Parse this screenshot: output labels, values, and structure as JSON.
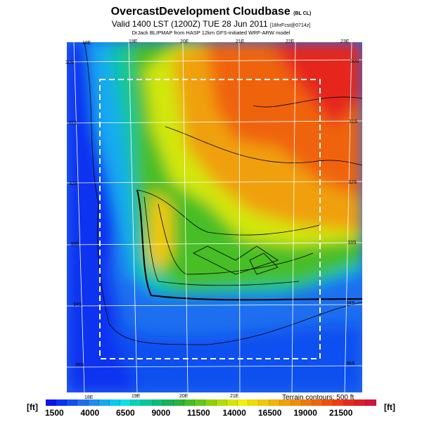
{
  "title": {
    "main": "OvercastDevelopment Cloudbase",
    "main_suffix": "(BL CL)",
    "line2": "Valid 1400 LST (1200Z) TUE 28 Jun 2011",
    "line2_suffix": "[18hrFcst@0714z]",
    "line3": "DrJack BLIPMAP from HASP 12km GFS-initiated WRF-ARW model"
  },
  "map": {
    "lon_top": [
      "18E",
      "19E",
      "20E",
      "21E",
      "22E",
      "23E"
    ],
    "lon_bottom": [
      "18E",
      "19E",
      "20E",
      "21E"
    ],
    "lat_right": [
      "30S",
      "31S",
      "32S",
      "33S",
      "34S",
      "35S"
    ],
    "lat_left": [
      "30S",
      "31S",
      "32S",
      "33S",
      "34S",
      "35S"
    ],
    "contour_note": "Terrain contours: 500 ft"
  },
  "colorbar": {
    "unit_left": "[ft]",
    "unit_right": "[ft]",
    "labels": [
      "1500",
      "4000",
      "6500",
      "9000",
      "11500",
      "14000",
      "16500",
      "19000",
      "21500"
    ],
    "colors": [
      "#0a14f0",
      "#0a32f0",
      "#1450f0",
      "#1e6ef0",
      "#1e8cf0",
      "#14aaf0",
      "#0ac8f0",
      "#0ae1e1",
      "#0ad2b4",
      "#0ac896",
      "#0abe78",
      "#14b45a",
      "#28b43c",
      "#46be28",
      "#64c814",
      "#8cd20a",
      "#b4dc0a",
      "#d2e60a",
      "#f0f00a",
      "#f0dc0a",
      "#f0c80a",
      "#f0b40a",
      "#f0a00a",
      "#f08c0a",
      "#f0780a",
      "#f0640a",
      "#f0500a",
      "#f03c14",
      "#e6281e",
      "#dc1e28",
      "#d2143c"
    ]
  }
}
